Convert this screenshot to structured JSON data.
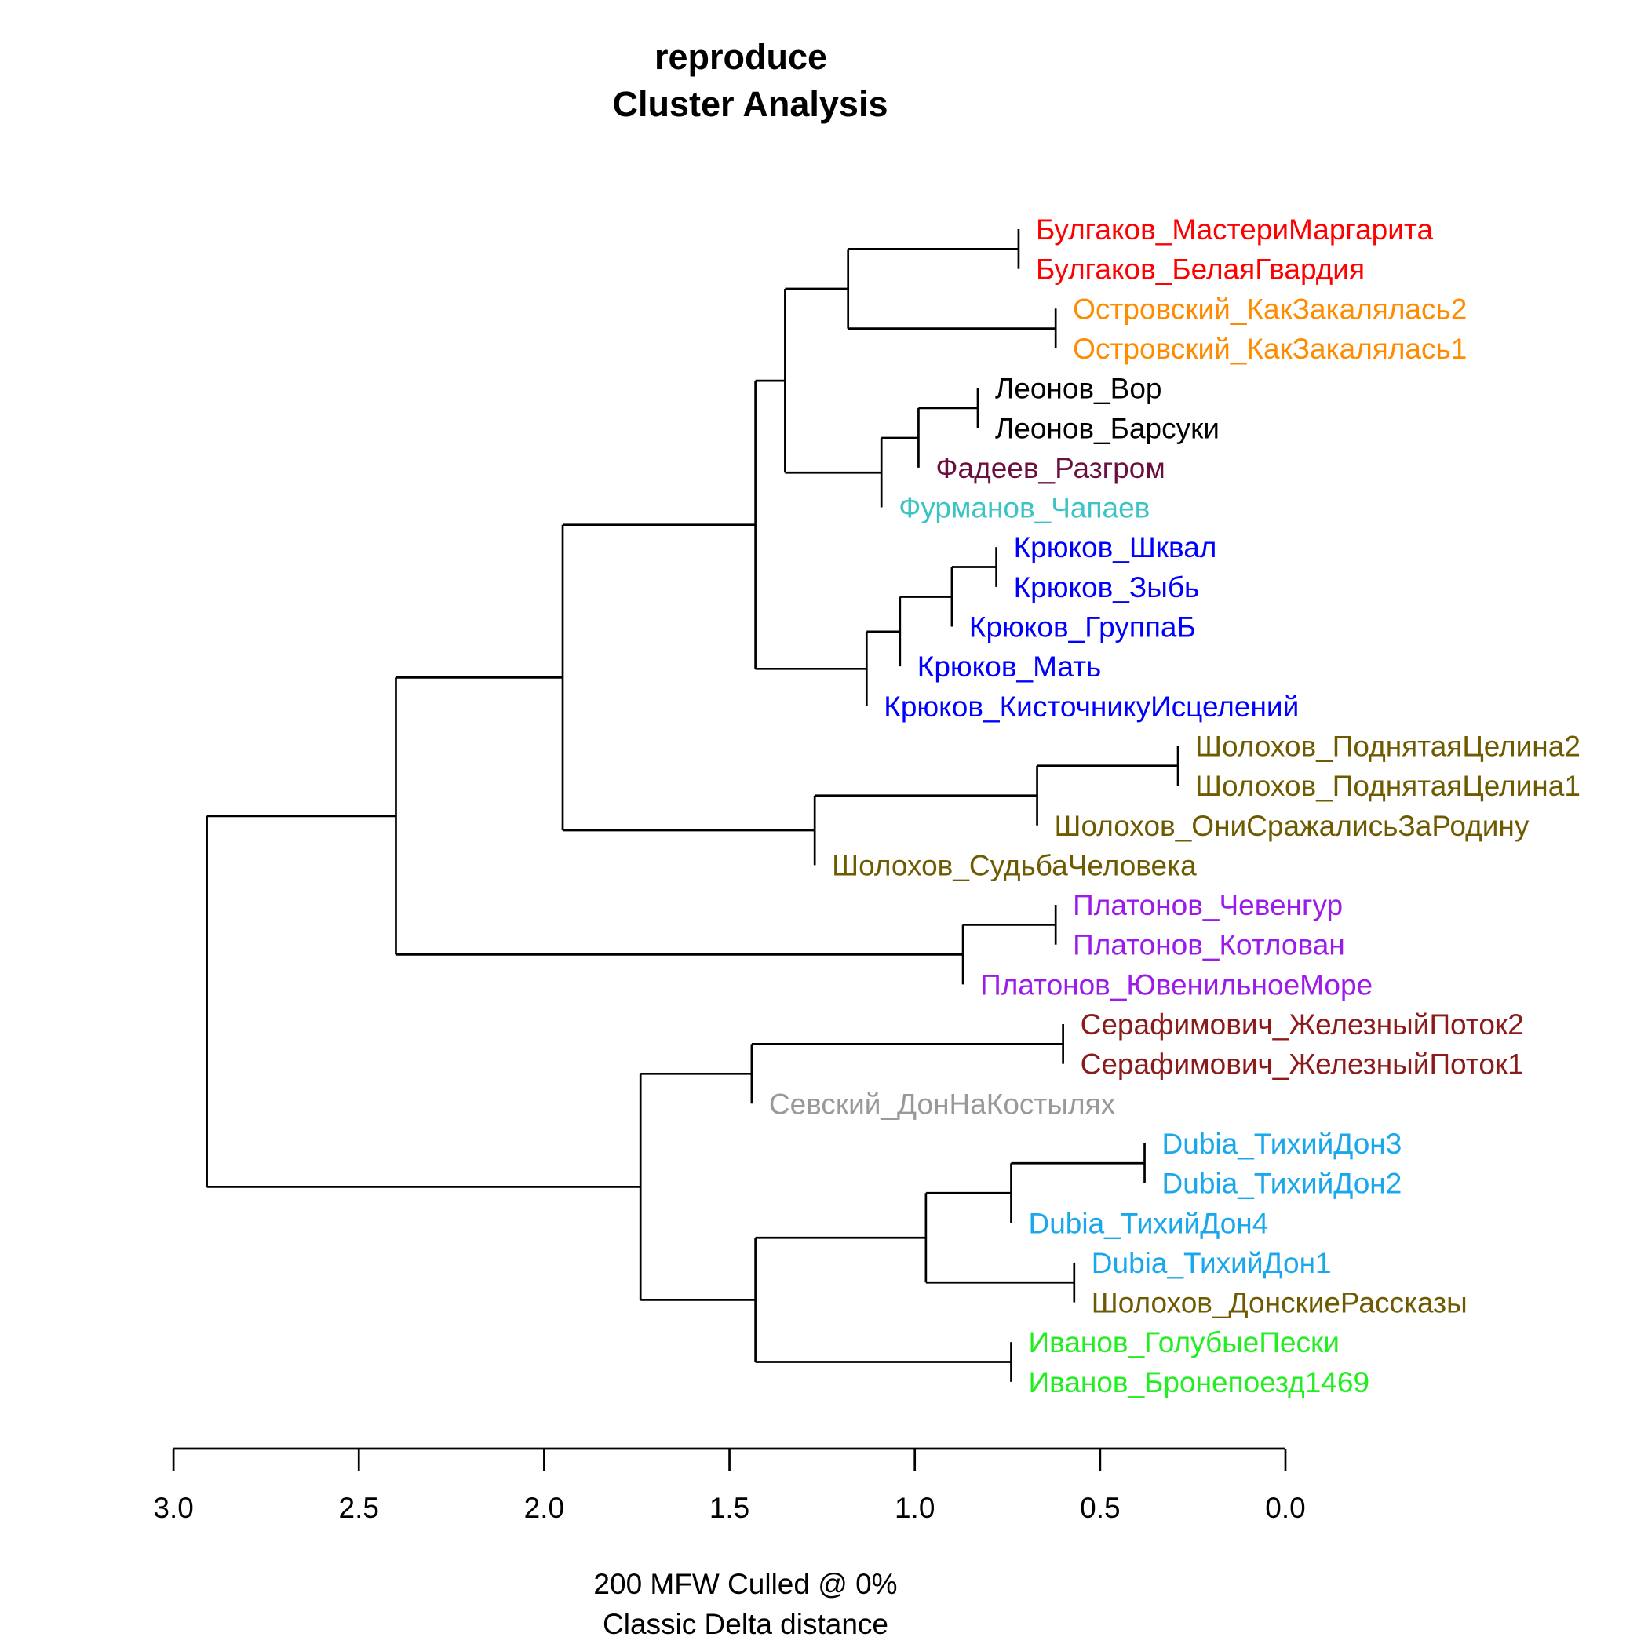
{
  "chart_data": {
    "type": "dendrogram",
    "title": "reproduce",
    "subtitle": "Cluster Analysis",
    "xlim": [
      3.0,
      0.0
    ],
    "x_ticks": [
      "3.0",
      "2.5",
      "2.0",
      "1.5",
      "1.0",
      "0.5",
      "0.0"
    ],
    "xlabel_line1": "200 MFW  Culled @ 0%",
    "xlabel_line2": "Classic Delta distance",
    "leaves": [
      {
        "label": "Булгаков_МастериМаргарита",
        "color": "#FF0000"
      },
      {
        "label": "Булгаков_БелаяГвардия",
        "color": "#FF0000"
      },
      {
        "label": "Островский_КакЗакалялась2",
        "color": "#FF8C00"
      },
      {
        "label": "Островский_КакЗакалялась1",
        "color": "#FF8C00"
      },
      {
        "label": "Леонов_Вор",
        "color": "#000000"
      },
      {
        "label": "Леонов_Барсуки",
        "color": "#000000"
      },
      {
        "label": "Фадеев_Разгром",
        "color": "#6B0F3F"
      },
      {
        "label": "Фурманов_Чапаев",
        "color": "#3CC3C3"
      },
      {
        "label": "Крюков_Шквал",
        "color": "#0000FF"
      },
      {
        "label": "Крюков_Зыбь",
        "color": "#0000FF"
      },
      {
        "label": "Крюков_ГруппаБ",
        "color": "#0000FF"
      },
      {
        "label": "Крюков_Мать",
        "color": "#0000FF"
      },
      {
        "label": "Крюков_КисточникуИсцелений",
        "color": "#0000FF"
      },
      {
        "label": "Шолохов_ПоднятаяЦелина2",
        "color": "#6E5A00"
      },
      {
        "label": "Шолохов_ПоднятаяЦелина1",
        "color": "#6E5A00"
      },
      {
        "label": "Шолохов_ОниСражалисьЗаРодину",
        "color": "#6E5A00"
      },
      {
        "label": "Шолохов_СудьбаЧеловека",
        "color": "#6E5A00"
      },
      {
        "label": "Платонов_Чевенгур",
        "color": "#9B1BE8"
      },
      {
        "label": "Платонов_Котлован",
        "color": "#9B1BE8"
      },
      {
        "label": "Платонов_ЮвенильноеМоре",
        "color": "#9B1BE8"
      },
      {
        "label": "Серафимович_ЖелезныйПоток2",
        "color": "#8B1A1A"
      },
      {
        "label": "Серафимович_ЖелезныйПоток1",
        "color": "#8B1A1A"
      },
      {
        "label": "Севский_ДонНаКостылях",
        "color": "#999999"
      },
      {
        "label": "Dubia_ТихийДон3",
        "color": "#1AA7EC"
      },
      {
        "label": "Dubia_ТихийДон2",
        "color": "#1AA7EC"
      },
      {
        "label": "Dubia_ТихийДон4",
        "color": "#1AA7EC"
      },
      {
        "label": "Dubia_ТихийДон1",
        "color": "#1AA7EC"
      },
      {
        "label": "Шолохов_ДонскиеРассказы",
        "color": "#6E5A00"
      },
      {
        "label": "Иванов_ГолубыеПески",
        "color": "#22EE22"
      },
      {
        "label": "Иванов_Бронепоезд1469",
        "color": "#22EE22"
      }
    ],
    "merges": [
      {
        "height": 0.72,
        "children": [
          "L0",
          "L1"
        ]
      },
      {
        "height": 0.62,
        "children": [
          "L2",
          "L3"
        ]
      },
      {
        "height": 1.18,
        "children": [
          "N0",
          "N1"
        ]
      },
      {
        "height": 0.83,
        "children": [
          "L4",
          "L5"
        ]
      },
      {
        "height": 0.99,
        "children": [
          "N3",
          "L6"
        ]
      },
      {
        "height": 1.09,
        "children": [
          "N4",
          "L7"
        ]
      },
      {
        "height": 1.35,
        "children": [
          "N2",
          "N5"
        ]
      },
      {
        "height": 0.78,
        "children": [
          "L8",
          "L9"
        ]
      },
      {
        "height": 0.9,
        "children": [
          "N7",
          "L10"
        ]
      },
      {
        "height": 1.04,
        "children": [
          "N8",
          "L11"
        ]
      },
      {
        "height": 1.13,
        "children": [
          "N9",
          "L12"
        ]
      },
      {
        "height": 1.43,
        "children": [
          "N6",
          "N10"
        ]
      },
      {
        "height": 0.29,
        "children": [
          "L13",
          "L14"
        ]
      },
      {
        "height": 0.67,
        "children": [
          "N12",
          "L15"
        ]
      },
      {
        "height": 1.27,
        "children": [
          "N13",
          "L16"
        ]
      },
      {
        "height": 1.95,
        "children": [
          "N11",
          "N14"
        ]
      },
      {
        "height": 0.62,
        "children": [
          "L17",
          "L18"
        ]
      },
      {
        "height": 0.87,
        "children": [
          "N16",
          "L19"
        ]
      },
      {
        "height": 2.4,
        "children": [
          "N15",
          "N17"
        ]
      },
      {
        "height": 0.6,
        "children": [
          "L20",
          "L21"
        ]
      },
      {
        "height": 1.44,
        "children": [
          "N19",
          "L22"
        ]
      },
      {
        "height": 0.38,
        "children": [
          "L23",
          "L24"
        ]
      },
      {
        "height": 0.74,
        "children": [
          "N21",
          "L25"
        ]
      },
      {
        "height": 0.57,
        "children": [
          "L26",
          "L27"
        ]
      },
      {
        "height": 0.97,
        "children": [
          "N22",
          "N23"
        ]
      },
      {
        "height": 0.74,
        "children": [
          "L28",
          "L29"
        ]
      },
      {
        "height": 1.43,
        "children": [
          "N24",
          "N25"
        ]
      },
      {
        "height": 1.74,
        "children": [
          "N20",
          "N26"
        ]
      },
      {
        "height": 2.91,
        "children": [
          "N18",
          "N27"
        ]
      }
    ]
  }
}
